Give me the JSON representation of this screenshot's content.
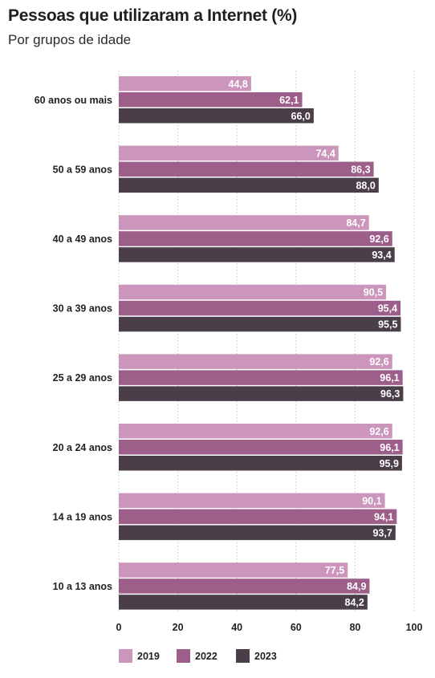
{
  "chart_data": {
    "type": "bar",
    "orientation": "horizontal",
    "title": "Pessoas que utilizaram a Internet (%)",
    "subtitle": "Por grupos de idade",
    "categories": [
      "60 anos ou mais",
      "50 a 59 anos",
      "40 a 49 anos",
      "30 a 39 anos",
      "25 a 29 anos",
      "20 a 24 anos",
      "14 a 19 anos",
      "10 a 13 anos"
    ],
    "series": [
      {
        "name": "2019",
        "color": "#cc95bb",
        "values": [
          44.8,
          74.4,
          84.7,
          90.5,
          92.6,
          92.6,
          90.1,
          77.5
        ],
        "labels": [
          "44,8",
          "74,4",
          "84,7",
          "90,5",
          "92,6",
          "92,6",
          "90,1",
          "77,5"
        ]
      },
      {
        "name": "2022",
        "color": "#9e5e8a",
        "values": [
          62.1,
          86.3,
          92.6,
          95.4,
          96.1,
          96.1,
          94.1,
          84.9
        ],
        "labels": [
          "62,1",
          "86,3",
          "92,6",
          "95,4",
          "96,1",
          "96,1",
          "94,1",
          "84,9"
        ]
      },
      {
        "name": "2023",
        "color": "#4a3f49",
        "values": [
          66.0,
          88.0,
          93.4,
          95.5,
          96.3,
          95.9,
          93.7,
          84.2
        ],
        "labels": [
          "66,0",
          "88,0",
          "93,4",
          "95,5",
          "96,3",
          "95,9",
          "93,7",
          "84,2"
        ]
      }
    ],
    "xlim": [
      0,
      100
    ],
    "xticks": [
      "0",
      "20",
      "40",
      "60",
      "80",
      "100"
    ],
    "legend_position": "bottom",
    "grid": "vertical dotted"
  }
}
